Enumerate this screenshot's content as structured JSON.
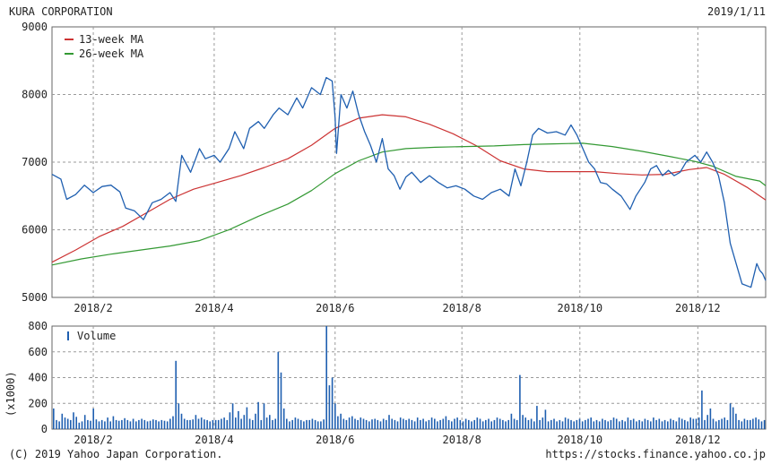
{
  "header": {
    "company": "KURA CORPORATION",
    "date": "2019/1/11"
  },
  "footer": {
    "copyright": "(C) 2019 Yahoo Japan Corporation.",
    "url": "https://stocks.finance.yahoo.co.jp"
  },
  "chart_data": [
    {
      "type": "line",
      "panel": "price",
      "x_unit": "trading day index (0 = first day shown, ~2018/1/11; 242 = 2019/1/11)",
      "x_range": [
        0,
        242
      ],
      "ylim": [
        5000,
        9000
      ],
      "yticks": [
        5000,
        6000,
        7000,
        8000,
        9000
      ],
      "xticks": [
        {
          "label": "2018/2",
          "x": 14
        },
        {
          "label": "2018/4",
          "x": 55
        },
        {
          "label": "2018/6",
          "x": 96
        },
        {
          "label": "2018/8",
          "x": 139
        },
        {
          "label": "2018/10",
          "x": 179
        },
        {
          "label": "2018/12",
          "x": 219
        }
      ],
      "grid": true,
      "legend_position": "top-left",
      "series": [
        {
          "name": "13-week MA",
          "color": "#cc3333",
          "points": [
            [
              0,
              5520
            ],
            [
              8,
              5700
            ],
            [
              16,
              5900
            ],
            [
              24,
              6050
            ],
            [
              32,
              6250
            ],
            [
              40,
              6450
            ],
            [
              48,
              6600
            ],
            [
              56,
              6700
            ],
            [
              64,
              6800
            ],
            [
              72,
              6920
            ],
            [
              80,
              7050
            ],
            [
              88,
              7250
            ],
            [
              96,
              7500
            ],
            [
              104,
              7650
            ],
            [
              112,
              7700
            ],
            [
              120,
              7670
            ],
            [
              128,
              7560
            ],
            [
              136,
              7420
            ],
            [
              144,
              7240
            ],
            [
              152,
              7020
            ],
            [
              160,
              6900
            ],
            [
              168,
              6860
            ],
            [
              176,
              6860
            ],
            [
              184,
              6860
            ],
            [
              192,
              6830
            ],
            [
              200,
              6810
            ],
            [
              208,
              6820
            ],
            [
              216,
              6890
            ],
            [
              222,
              6920
            ],
            [
              228,
              6820
            ],
            [
              236,
              6620
            ],
            [
              242,
              6440
            ]
          ]
        },
        {
          "name": "26-week MA",
          "color": "#339933",
          "points": [
            [
              0,
              5480
            ],
            [
              10,
              5570
            ],
            [
              20,
              5640
            ],
            [
              30,
              5700
            ],
            [
              40,
              5760
            ],
            [
              50,
              5840
            ],
            [
              60,
              6000
            ],
            [
              70,
              6200
            ],
            [
              80,
              6380
            ],
            [
              88,
              6580
            ],
            [
              96,
              6830
            ],
            [
              104,
              7020
            ],
            [
              112,
              7150
            ],
            [
              120,
              7200
            ],
            [
              130,
              7220
            ],
            [
              140,
              7230
            ],
            [
              150,
              7240
            ],
            [
              160,
              7260
            ],
            [
              170,
              7270
            ],
            [
              180,
              7280
            ],
            [
              190,
              7230
            ],
            [
              200,
              7160
            ],
            [
              210,
              7080
            ],
            [
              218,
              7010
            ],
            [
              224,
              6940
            ],
            [
              232,
              6790
            ],
            [
              240,
              6720
            ],
            [
              242,
              6650
            ]
          ]
        },
        {
          "name": "Price",
          "color": "#1f5fb0",
          "points": [
            [
              0,
              6820
            ],
            [
              3,
              6750
            ],
            [
              5,
              6450
            ],
            [
              8,
              6520
            ],
            [
              11,
              6660
            ],
            [
              14,
              6550
            ],
            [
              17,
              6640
            ],
            [
              20,
              6660
            ],
            [
              23,
              6560
            ],
            [
              25,
              6320
            ],
            [
              28,
              6280
            ],
            [
              31,
              6150
            ],
            [
              34,
              6400
            ],
            [
              37,
              6450
            ],
            [
              40,
              6550
            ],
            [
              42,
              6420
            ],
            [
              44,
              7100
            ],
            [
              47,
              6850
            ],
            [
              50,
              7200
            ],
            [
              52,
              7050
            ],
            [
              55,
              7100
            ],
            [
              57,
              7000
            ],
            [
              60,
              7200
            ],
            [
              62,
              7450
            ],
            [
              65,
              7200
            ],
            [
              67,
              7500
            ],
            [
              70,
              7600
            ],
            [
              72,
              7500
            ],
            [
              75,
              7700
            ],
            [
              77,
              7800
            ],
            [
              80,
              7700
            ],
            [
              83,
              7950
            ],
            [
              85,
              7800
            ],
            [
              88,
              8100
            ],
            [
              91,
              8000
            ],
            [
              93,
              8250
            ],
            [
              95,
              8200
            ],
            [
              96,
              7650
            ],
            [
              96.5,
              7130
            ],
            [
              98,
              8000
            ],
            [
              100,
              7800
            ],
            [
              102,
              8050
            ],
            [
              104,
              7700
            ],
            [
              106,
              7450
            ],
            [
              108,
              7250
            ],
            [
              110,
              7000
            ],
            [
              112,
              7350
            ],
            [
              114,
              6900
            ],
            [
              116,
              6800
            ],
            [
              118,
              6600
            ],
            [
              120,
              6780
            ],
            [
              122,
              6850
            ],
            [
              125,
              6700
            ],
            [
              128,
              6800
            ],
            [
              131,
              6700
            ],
            [
              134,
              6620
            ],
            [
              137,
              6650
            ],
            [
              140,
              6600
            ],
            [
              143,
              6500
            ],
            [
              146,
              6450
            ],
            [
              149,
              6550
            ],
            [
              152,
              6600
            ],
            [
              155,
              6500
            ],
            [
              157,
              6900
            ],
            [
              159,
              6650
            ],
            [
              161,
              7000
            ],
            [
              163,
              7400
            ],
            [
              165,
              7500
            ],
            [
              168,
              7430
            ],
            [
              171,
              7450
            ],
            [
              174,
              7400
            ],
            [
              176,
              7550
            ],
            [
              178,
              7400
            ],
            [
              180,
              7200
            ],
            [
              182,
              7000
            ],
            [
              184,
              6900
            ],
            [
              186,
              6700
            ],
            [
              188,
              6680
            ],
            [
              190,
              6600
            ],
            [
              193,
              6500
            ],
            [
              196,
              6300
            ],
            [
              198,
              6500
            ],
            [
              201,
              6700
            ],
            [
              203,
              6900
            ],
            [
              205,
              6950
            ],
            [
              207,
              6800
            ],
            [
              209,
              6880
            ],
            [
              211,
              6800
            ],
            [
              213,
              6850
            ],
            [
              215,
              7000
            ],
            [
              218,
              7100
            ],
            [
              220,
              7000
            ],
            [
              222,
              7150
            ],
            [
              224,
              7000
            ],
            [
              226,
              6800
            ],
            [
              228,
              6400
            ],
            [
              230,
              5800
            ],
            [
              232,
              5500
            ],
            [
              234,
              5200
            ],
            [
              237,
              5150
            ],
            [
              239,
              5500
            ],
            [
              240,
              5400
            ],
            [
              241,
              5350
            ],
            [
              242,
              5250
            ]
          ]
        }
      ]
    },
    {
      "type": "bar",
      "panel": "volume",
      "ylabel": "(x1000)",
      "ylim": [
        0,
        800
      ],
      "yticks": [
        0,
        200,
        400,
        600,
        800
      ],
      "grid": true,
      "legend_position": "top-left",
      "series": [
        {
          "name": "Volume",
          "color": "#1f5fb0",
          "values": [
            160,
            70,
            60,
            120,
            90,
            80,
            70,
            130,
            95,
            50,
            60,
            110,
            70,
            65,
            160,
            75,
            60,
            70,
            60,
            90,
            60,
            100,
            70,
            65,
            70,
            85,
            70,
            60,
            80,
            60,
            70,
            80,
            70,
            60,
            65,
            75,
            70,
            60,
            70,
            65,
            60,
            80,
            100,
            530,
            200,
            120,
            80,
            70,
            70,
            75,
            110,
            80,
            90,
            75,
            70,
            60,
            70,
            70,
            70,
            80,
            90,
            70,
            130,
            200,
            90,
            140,
            80,
            110,
            170,
            80,
            70,
            120,
            210,
            70,
            200,
            90,
            110,
            70,
            80,
            600,
            440,
            160,
            80,
            60,
            70,
            90,
            80,
            70,
            60,
            70,
            70,
            80,
            70,
            60,
            60,
            75,
            840,
            340,
            400,
            200,
            100,
            120,
            80,
            70,
            90,
            100,
            80,
            70,
            90,
            80,
            70,
            60,
            75,
            80,
            70,
            60,
            80,
            70,
            110,
            80,
            70,
            60,
            90,
            80,
            70,
            80,
            70,
            60,
            90,
            70,
            80,
            60,
            70,
            90,
            80,
            60,
            70,
            80,
            100,
            70,
            60,
            80,
            90,
            70,
            60,
            80,
            70,
            60,
            70,
            90,
            80,
            60,
            70,
            80,
            60,
            70,
            90,
            80,
            70,
            60,
            70,
            120,
            80,
            70,
            420,
            110,
            90,
            70,
            80,
            60,
            180,
            70,
            90,
            150,
            60,
            70,
            80,
            60,
            70,
            60,
            90,
            80,
            70,
            60,
            70,
            80,
            60,
            70,
            80,
            90,
            60,
            70,
            60,
            80,
            70,
            60,
            70,
            90,
            80,
            60,
            70,
            60,
            90,
            70,
            80,
            60,
            70,
            60,
            80,
            70,
            60,
            90,
            70,
            80,
            60,
            70,
            60,
            80,
            70,
            60,
            90,
            80,
            70,
            60,
            90,
            80,
            80,
            90,
            300,
            70,
            110,
            160,
            80,
            60,
            70,
            80,
            90,
            70,
            200,
            170,
            120,
            70,
            60,
            80,
            70,
            70,
            80,
            90,
            75,
            60,
            70
          ]
        }
      ]
    }
  ]
}
